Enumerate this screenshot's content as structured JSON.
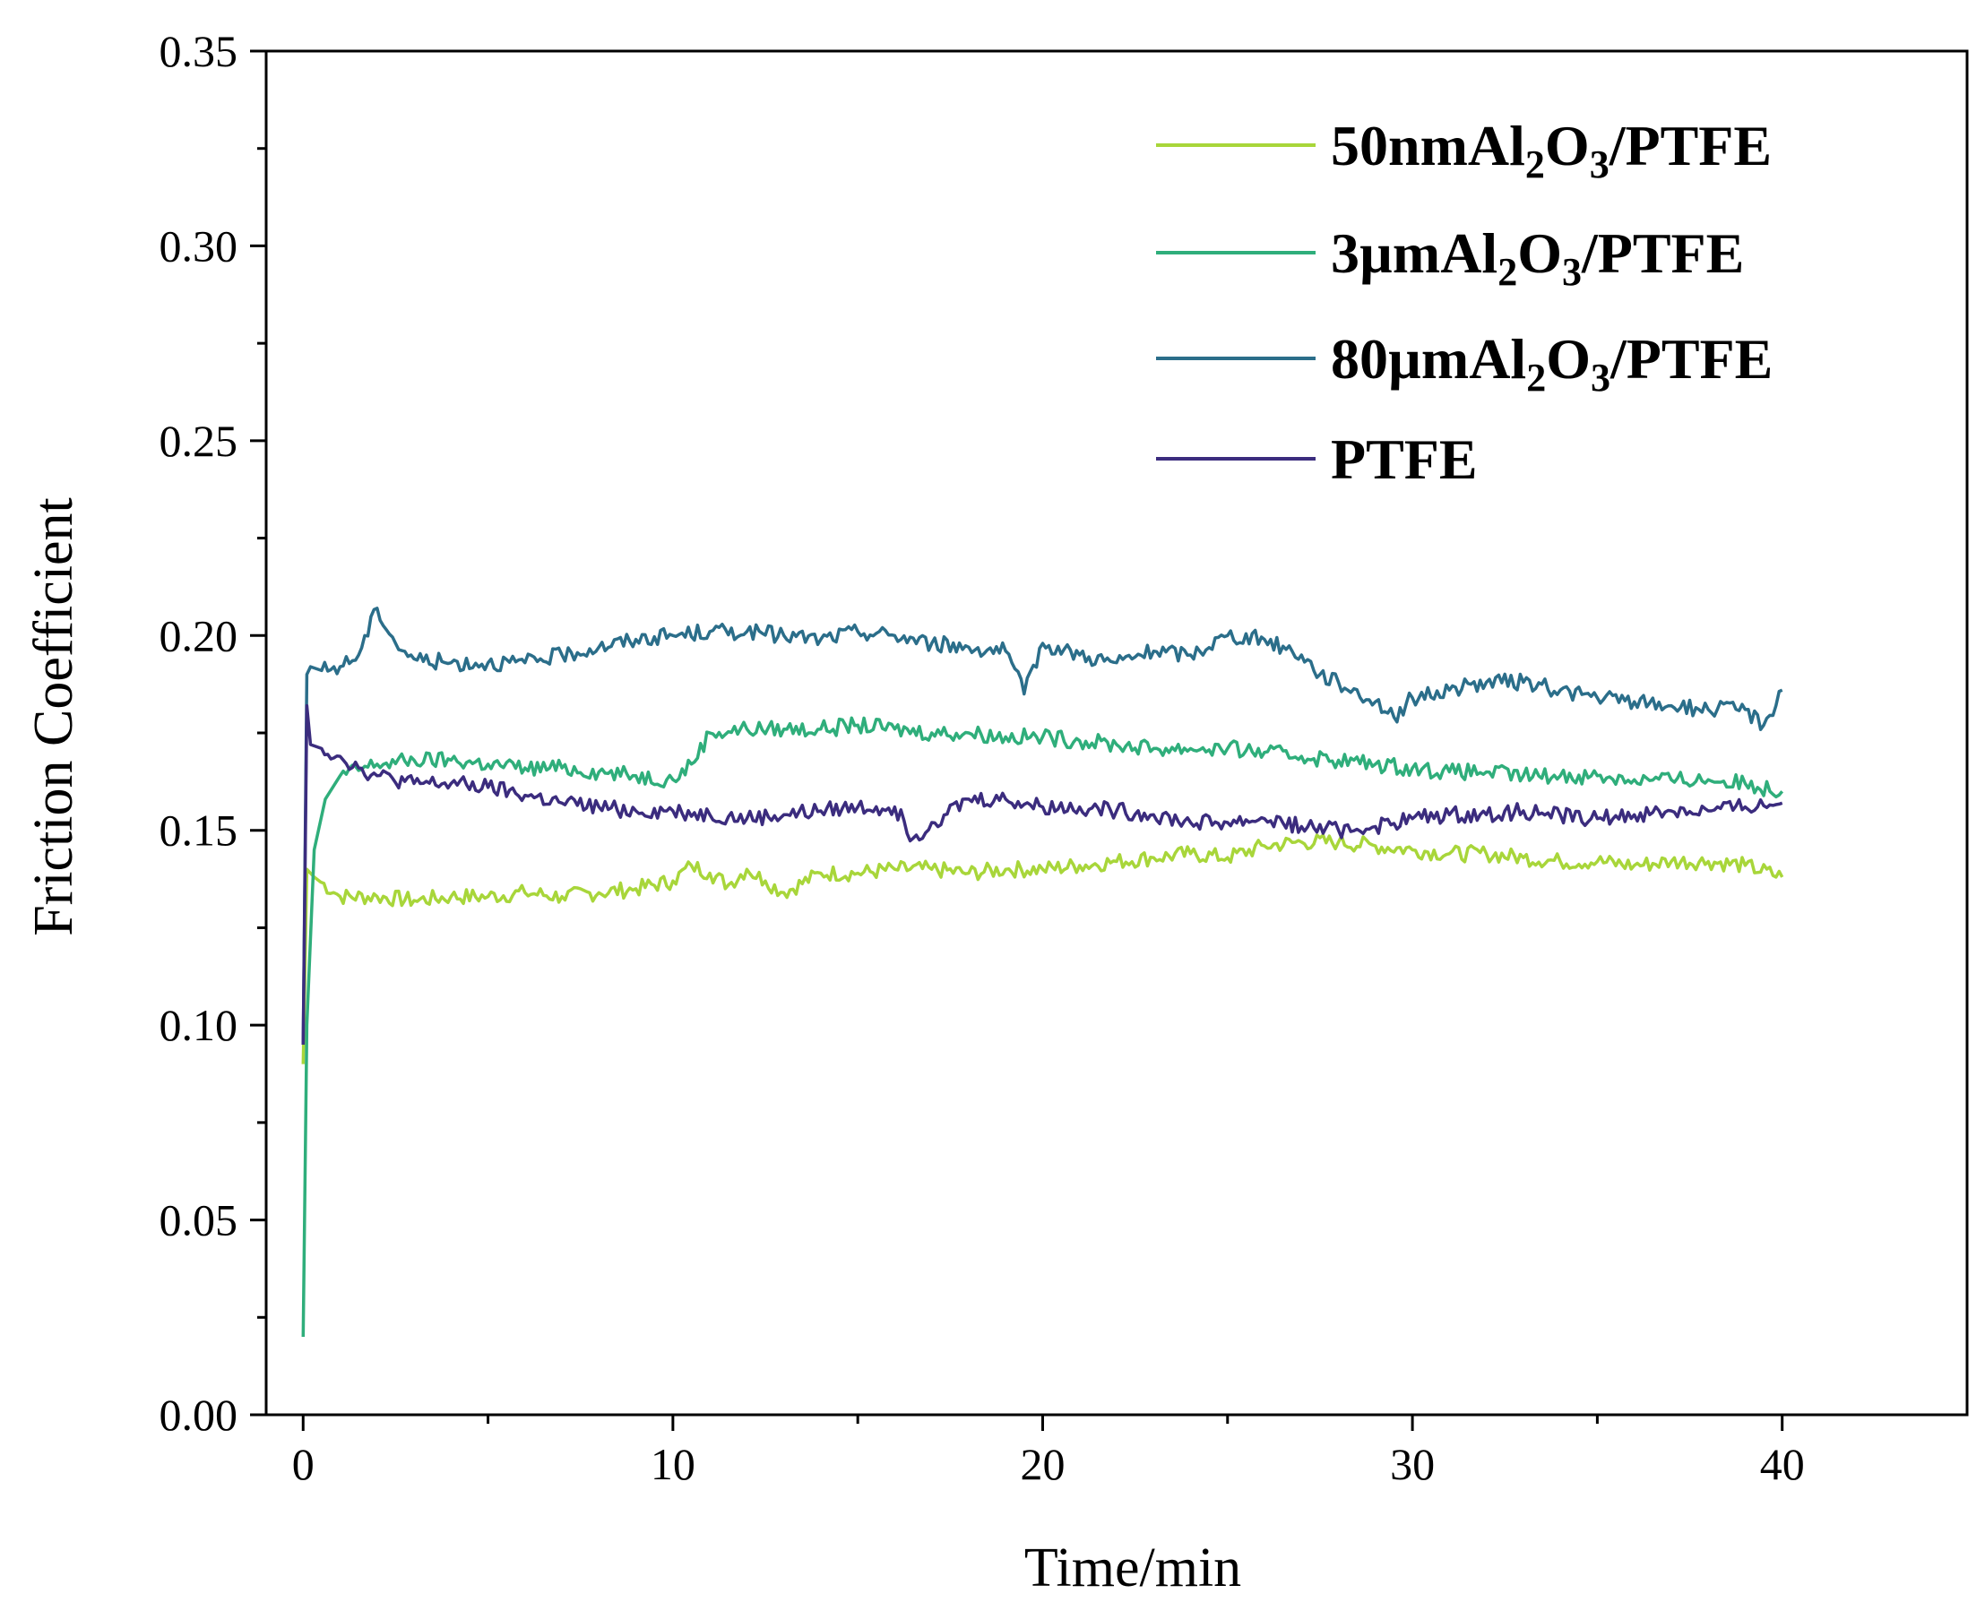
{
  "chart_data": {
    "type": "line",
    "title": "",
    "xlabel": "Time/min",
    "ylabel": "Friction Coefficient",
    "xlim": [
      -1,
      45
    ],
    "ylim": [
      0,
      0.35
    ],
    "xticks": [
      0,
      10,
      20,
      30,
      40
    ],
    "xtick_labels": [
      "0",
      "10",
      "20",
      "30",
      "40"
    ],
    "yticks": [
      0,
      0.05,
      0.1,
      0.15,
      0.2,
      0.25,
      0.3,
      0.35
    ],
    "ytick_labels": [
      "0.00",
      "0.05",
      "0.10",
      "0.15",
      "0.20",
      "0.25",
      "0.30",
      "0.35"
    ],
    "grid": false,
    "legend_position": "top-right",
    "series": [
      {
        "name": "50nmAl2O3/PTFE",
        "legend": {
          "pre": "50nmAl",
          "sub1": "2",
          "mid": "O",
          "sub2": "3",
          "post": "/PTFE"
        },
        "color": "#a8d63a",
        "x": [
          0,
          0.1,
          0.3,
          1,
          2,
          3,
          4,
          5,
          6,
          7,
          8,
          9,
          10,
          10.5,
          11,
          11.5,
          12,
          12.5,
          13,
          14,
          15,
          16,
          17,
          18,
          19,
          20,
          21,
          22,
          23,
          24,
          25,
          26,
          27,
          28,
          29,
          30,
          31,
          32,
          33,
          34,
          35,
          36,
          37,
          38,
          39,
          40
        ],
        "y": [
          0.09,
          0.14,
          0.138,
          0.133,
          0.133,
          0.132,
          0.133,
          0.133,
          0.134,
          0.133,
          0.134,
          0.135,
          0.137,
          0.141,
          0.139,
          0.136,
          0.14,
          0.137,
          0.134,
          0.139,
          0.139,
          0.14,
          0.14,
          0.139,
          0.14,
          0.14,
          0.141,
          0.142,
          0.143,
          0.144,
          0.143,
          0.146,
          0.147,
          0.147,
          0.146,
          0.145,
          0.144,
          0.144,
          0.143,
          0.142,
          0.142,
          0.141,
          0.142,
          0.142,
          0.141,
          0.138
        ]
      },
      {
        "name": "3µmAl2O3/PTFE",
        "legend": {
          "pre": "3µmAl",
          "sub1": "2",
          "mid": "O",
          "sub2": "3",
          "post": "/PTFE"
        },
        "color": "#2fae7b",
        "x": [
          0,
          0.1,
          0.3,
          0.6,
          1,
          2,
          3,
          4,
          5,
          6,
          7,
          8,
          9,
          10,
          10.5,
          11,
          12,
          13,
          14,
          15,
          16,
          17,
          18,
          19,
          20,
          21,
          22,
          23,
          24,
          25,
          26,
          27,
          28,
          29,
          30,
          31,
          32,
          33,
          34,
          35,
          36,
          37,
          38,
          39,
          40
        ],
        "y": [
          0.02,
          0.1,
          0.145,
          0.158,
          0.164,
          0.167,
          0.168,
          0.168,
          0.167,
          0.166,
          0.166,
          0.165,
          0.164,
          0.163,
          0.167,
          0.175,
          0.176,
          0.176,
          0.176,
          0.177,
          0.176,
          0.175,
          0.175,
          0.174,
          0.174,
          0.173,
          0.172,
          0.171,
          0.171,
          0.171,
          0.17,
          0.169,
          0.168,
          0.167,
          0.166,
          0.165,
          0.165,
          0.164,
          0.164,
          0.164,
          0.163,
          0.163,
          0.163,
          0.162,
          0.16
        ]
      },
      {
        "name": "80µmAl2O3/PTFE",
        "legend": {
          "pre": "80µmAl",
          "sub1": "2",
          "mid": "O",
          "sub2": "3",
          "post": "/PTFE"
        },
        "color": "#2b6e8a",
        "x": [
          0,
          0.1,
          0.2,
          0.5,
          1,
          1.5,
          2,
          2.5,
          3,
          4,
          5,
          6,
          7,
          8,
          9,
          10,
          11,
          12,
          13,
          14,
          15,
          16,
          17,
          18,
          19,
          19.5,
          20,
          21,
          22,
          23,
          24,
          25,
          26,
          27,
          27.5,
          28,
          29,
          29.5,
          30,
          31,
          32,
          33,
          34,
          35,
          36,
          37,
          38,
          39,
          39.5,
          40
        ],
        "y": [
          0.095,
          0.19,
          0.192,
          0.191,
          0.192,
          0.195,
          0.207,
          0.198,
          0.194,
          0.193,
          0.193,
          0.193,
          0.195,
          0.197,
          0.199,
          0.2,
          0.201,
          0.201,
          0.2,
          0.199,
          0.201,
          0.2,
          0.198,
          0.197,
          0.196,
          0.185,
          0.198,
          0.195,
          0.193,
          0.196,
          0.195,
          0.2,
          0.199,
          0.195,
          0.19,
          0.188,
          0.183,
          0.179,
          0.184,
          0.186,
          0.188,
          0.188,
          0.186,
          0.184,
          0.183,
          0.182,
          0.181,
          0.181,
          0.177,
          0.186
        ]
      },
      {
        "name": "PTFE",
        "legend": {
          "pre": "PTFE",
          "sub1": "",
          "mid": "",
          "sub2": "",
          "post": ""
        },
        "color": "#3b2c7e",
        "x": [
          0,
          0.1,
          0.2,
          0.5,
          1,
          1.5,
          2,
          3,
          4,
          5,
          6,
          7,
          8,
          9,
          10,
          11,
          12,
          13,
          14,
          15,
          16,
          16.5,
          17,
          18,
          19,
          20,
          21,
          22,
          23,
          24,
          25,
          26,
          27,
          28,
          29,
          30,
          31,
          32,
          33,
          34,
          35,
          36,
          37,
          38,
          39,
          40
        ],
        "y": [
          0.095,
          0.182,
          0.172,
          0.171,
          0.169,
          0.166,
          0.164,
          0.162,
          0.162,
          0.161,
          0.159,
          0.157,
          0.156,
          0.155,
          0.155,
          0.154,
          0.153,
          0.154,
          0.155,
          0.156,
          0.156,
          0.148,
          0.152,
          0.158,
          0.158,
          0.156,
          0.156,
          0.155,
          0.154,
          0.152,
          0.152,
          0.153,
          0.151,
          0.15,
          0.151,
          0.153,
          0.154,
          0.154,
          0.155,
          0.154,
          0.153,
          0.154,
          0.155,
          0.155,
          0.156,
          0.157
        ]
      }
    ]
  }
}
